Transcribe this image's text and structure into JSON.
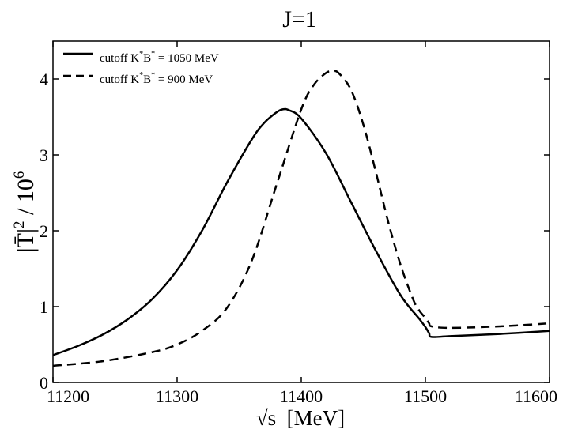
{
  "chart_data": {
    "type": "line",
    "title": "J=1",
    "xlabel": "√s  [MeV]",
    "ylabel_base": "|T̄|",
    "ylabel_exp": "2",
    "ylabel_tail": " / 10",
    "ylabel_tail_exp": "6",
    "xlim": [
      11200,
      11600
    ],
    "ylim": [
      0,
      4.5
    ],
    "xticks": [
      11200,
      11300,
      11400,
      11500,
      11600
    ],
    "yticks": [
      0,
      1,
      2,
      3,
      4
    ],
    "grid": false,
    "legend_position": "top-left",
    "series": [
      {
        "name": "cutoff K*B* = 1050 MeV",
        "legend": {
          "prefix": "cutoff K",
          "sup1": "*",
          "mid": "B",
          "sup2": "*",
          "suffix": " = 1050 MeV"
        },
        "style": "solid",
        "x": [
          11200,
          11220,
          11240,
          11260,
          11280,
          11300,
          11320,
          11340,
          11360,
          11370,
          11380,
          11385,
          11390,
          11400,
          11420,
          11440,
          11460,
          11480,
          11495,
          11500,
          11503,
          11505,
          11520,
          11560,
          11600
        ],
        "y": [
          0.36,
          0.48,
          0.63,
          0.83,
          1.1,
          1.48,
          2.0,
          2.63,
          3.2,
          3.42,
          3.56,
          3.6,
          3.59,
          3.48,
          3.02,
          2.38,
          1.74,
          1.15,
          0.84,
          0.73,
          0.65,
          0.6,
          0.61,
          0.64,
          0.68
        ]
      },
      {
        "name": "cutoff K*B* = 900 MeV",
        "legend": {
          "prefix": "cutoff K",
          "sup1": "*",
          "mid": "B",
          "sup2": "*",
          "suffix": " = 900 MeV"
        },
        "style": "dashed",
        "x": [
          11200,
          11240,
          11280,
          11300,
          11320,
          11340,
          11360,
          11380,
          11400,
          11410,
          11420,
          11425,
          11430,
          11440,
          11450,
          11460,
          11470,
          11480,
          11490,
          11495,
          11500,
          11503,
          11505,
          11520,
          11560,
          11600
        ],
        "y": [
          0.22,
          0.28,
          0.4,
          0.5,
          0.68,
          0.98,
          1.6,
          2.6,
          3.6,
          3.92,
          4.08,
          4.1,
          4.08,
          3.86,
          3.4,
          2.78,
          2.12,
          1.55,
          1.1,
          0.95,
          0.85,
          0.78,
          0.74,
          0.72,
          0.74,
          0.78
        ]
      }
    ]
  }
}
